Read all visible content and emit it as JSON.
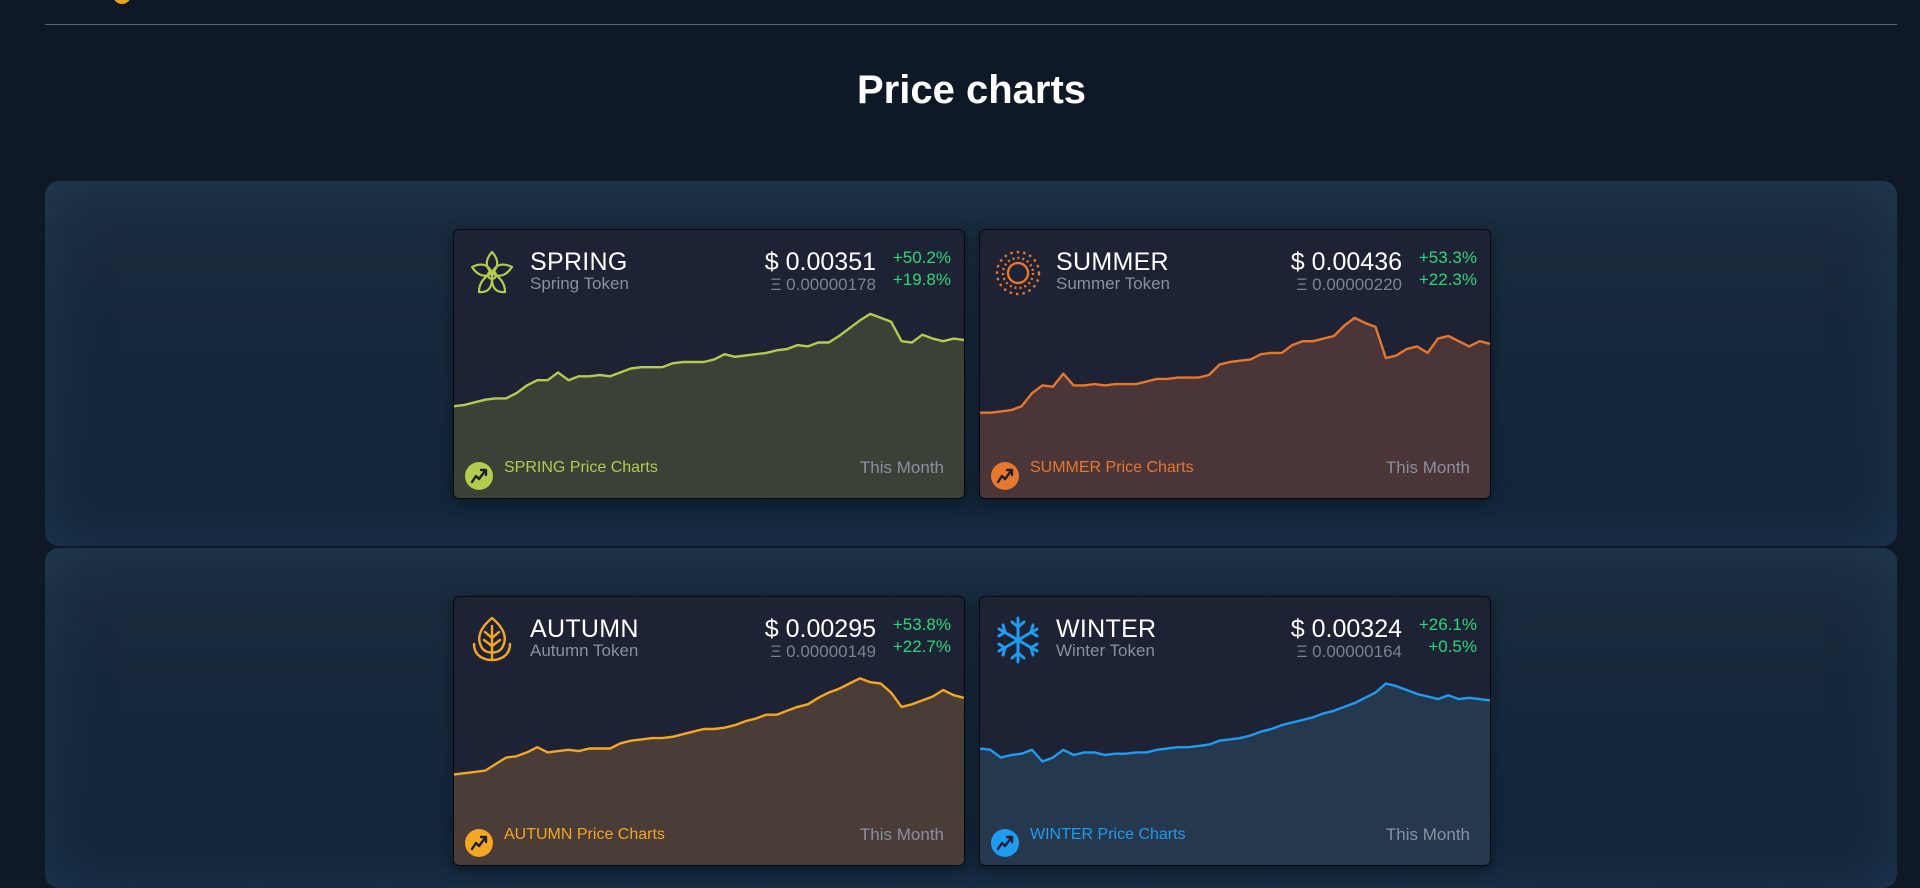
{
  "page": {
    "title": "Price charts"
  },
  "cards": [
    {
      "symbol": "SPRING",
      "name": "Spring Token",
      "price_usd": "$ 0.00351",
      "price_eth": "Ξ 0.00000178",
      "change_1": "+50.2%",
      "change_2": "+19.8%",
      "chart_label": "SPRING Price Charts",
      "period": "This Month",
      "color": "#b3cb4e",
      "fill": "#3a4238",
      "icon": "spring-flower-icon",
      "chart_data": {
        "type": "area",
        "period": "This Month",
        "values": [
          2.6,
          2.7,
          2.9,
          3.1,
          3.2,
          3.2,
          3.6,
          4.2,
          4.6,
          4.6,
          5.2,
          4.6,
          4.9,
          4.9,
          5.0,
          4.9,
          5.2,
          5.5,
          5.6,
          5.6,
          5.6,
          5.9,
          6.0,
          6.0,
          6.0,
          6.2,
          6.6,
          6.4,
          6.5,
          6.6,
          6.7,
          6.9,
          7.0,
          7.3,
          7.2,
          7.5,
          7.5,
          8.0,
          8.6,
          9.2,
          9.7,
          9.4,
          9.1,
          7.6,
          7.5,
          8.1,
          7.8,
          7.6,
          7.8,
          7.7
        ]
      }
    },
    {
      "symbol": "SUMMER",
      "name": "Summer Token",
      "price_usd": "$ 0.00436",
      "price_eth": "Ξ 0.00000220",
      "change_1": "+53.3%",
      "change_2": "+22.3%",
      "chart_label": "SUMMER Price Charts",
      "period": "This Month",
      "color": "#e8772e",
      "fill": "#4a3538",
      "icon": "summer-sun-icon",
      "chart_data": {
        "type": "area",
        "period": "This Month",
        "values": [
          2.1,
          2.1,
          2.2,
          2.3,
          2.6,
          3.6,
          4.2,
          4.1,
          5.1,
          4.2,
          4.2,
          4.3,
          4.2,
          4.3,
          4.3,
          4.3,
          4.5,
          4.7,
          4.7,
          4.8,
          4.8,
          4.8,
          5.0,
          5.8,
          6.0,
          6.1,
          6.2,
          6.6,
          6.7,
          6.7,
          7.3,
          7.6,
          7.6,
          7.8,
          8.0,
          8.8,
          9.4,
          9.0,
          8.7,
          6.3,
          6.5,
          7.0,
          7.2,
          6.7,
          7.8,
          8.0,
          7.6,
          7.2,
          7.6,
          7.4
        ]
      }
    },
    {
      "symbol": "AUTUMN",
      "name": "Autumn Token",
      "price_usd": "$ 0.00295",
      "price_eth": "Ξ 0.00000149",
      "change_1": "+53.8%",
      "change_2": "+22.7%",
      "chart_label": "AUTUMN Price Charts",
      "period": "This Month",
      "color": "#f4a625",
      "fill": "#4a3c36",
      "icon": "autumn-leaf-icon",
      "chart_data": {
        "type": "area",
        "period": "This Month",
        "values": [
          2.5,
          2.6,
          2.7,
          2.8,
          3.3,
          3.8,
          3.9,
          4.2,
          4.6,
          4.2,
          4.3,
          4.4,
          4.3,
          4.5,
          4.5,
          4.5,
          4.9,
          5.1,
          5.2,
          5.3,
          5.3,
          5.4,
          5.6,
          5.8,
          6.0,
          6.0,
          6.1,
          6.3,
          6.6,
          6.8,
          7.1,
          7.1,
          7.4,
          7.7,
          7.9,
          8.4,
          8.8,
          9.1,
          9.5,
          9.9,
          9.6,
          9.5,
          8.8,
          7.7,
          7.9,
          8.2,
          8.5,
          9.0,
          8.6,
          8.4
        ]
      }
    },
    {
      "symbol": "WINTER",
      "name": "Winter Token",
      "price_usd": "$ 0.00324",
      "price_eth": "Ξ 0.00000164",
      "change_1": "+26.1%",
      "change_2": "+0.5%",
      "chart_label": "WINTER Price Charts",
      "period": "This Month",
      "color": "#1f9bf0",
      "fill": "#26384e",
      "icon": "winter-snowflake-icon",
      "chart_data": {
        "type": "area",
        "period": "This Month",
        "values": [
          4.5,
          4.4,
          3.8,
          4.0,
          4.1,
          4.4,
          3.5,
          3.8,
          4.4,
          4.0,
          4.2,
          4.2,
          4.0,
          4.1,
          4.1,
          4.2,
          4.2,
          4.4,
          4.5,
          4.6,
          4.6,
          4.7,
          4.8,
          5.1,
          5.2,
          5.3,
          5.5,
          5.8,
          6.0,
          6.3,
          6.5,
          6.7,
          6.9,
          7.2,
          7.4,
          7.7,
          8.0,
          8.4,
          8.8,
          9.5,
          9.3,
          9.0,
          8.7,
          8.5,
          8.3,
          8.6,
          8.3,
          8.4,
          8.3,
          8.2
        ]
      }
    }
  ]
}
